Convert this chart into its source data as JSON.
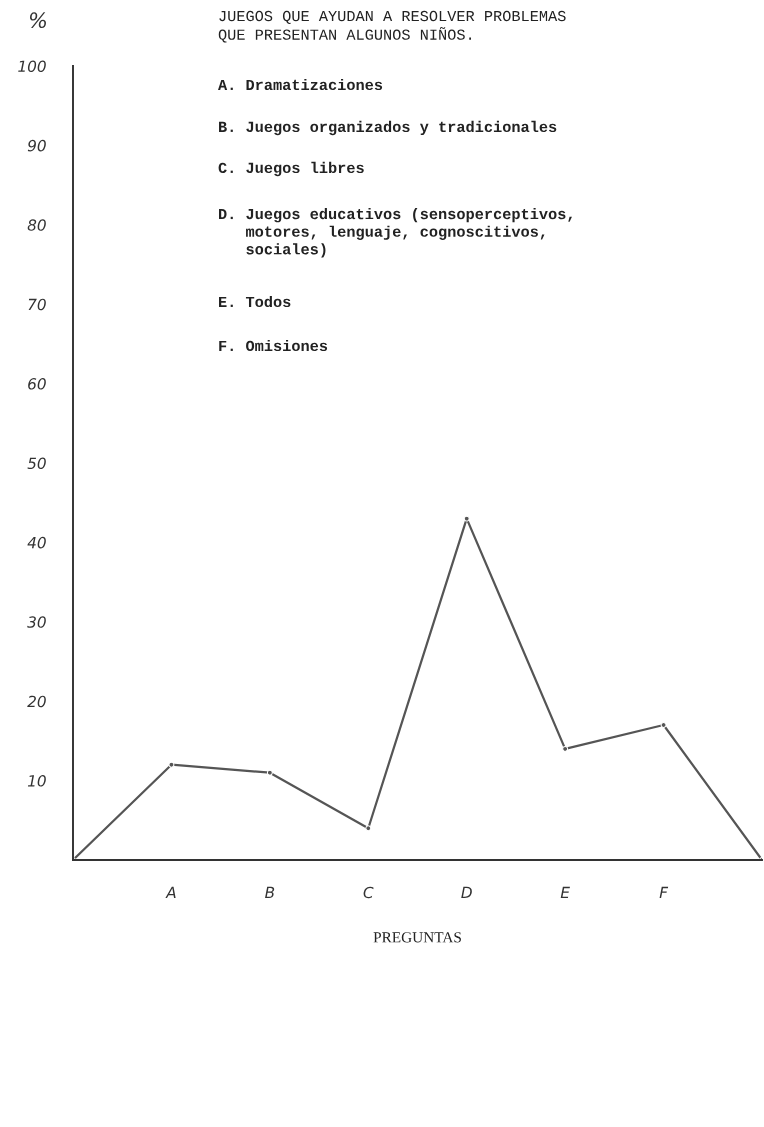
{
  "chart_data": {
    "type": "line",
    "title": "JUEGOS QUE AYUDAN A RESOLVER PROBLEMAS\nQUE PRESENTAN ALGUNOS NIÑOS.",
    "xlabel": "PREGUNTAS",
    "ylabel": "%",
    "categories": [
      null,
      "A",
      "B",
      "C",
      "D",
      "E",
      "F",
      null
    ],
    "series": [
      {
        "color": "#555555",
        "values": [
          0,
          12,
          11,
          4,
          43,
          14,
          17,
          0
        ]
      }
    ],
    "ylim": [
      0,
      100
    ],
    "yticks": [
      10,
      20,
      30,
      40,
      50,
      60,
      70,
      80,
      90,
      100
    ],
    "marker": "circle",
    "line_style": "solid",
    "grid": false,
    "legend": false,
    "annotations": [
      "A. Dramatizaciones",
      "B. Juegos organizados y tradicionales",
      "C. Juegos libres",
      "D. Juegos educativos (sensoperceptivos,\n   motores, lenguaje, cognoscitivos,\n   sociales)",
      "E. Todos",
      "F. Omisiones"
    ]
  }
}
